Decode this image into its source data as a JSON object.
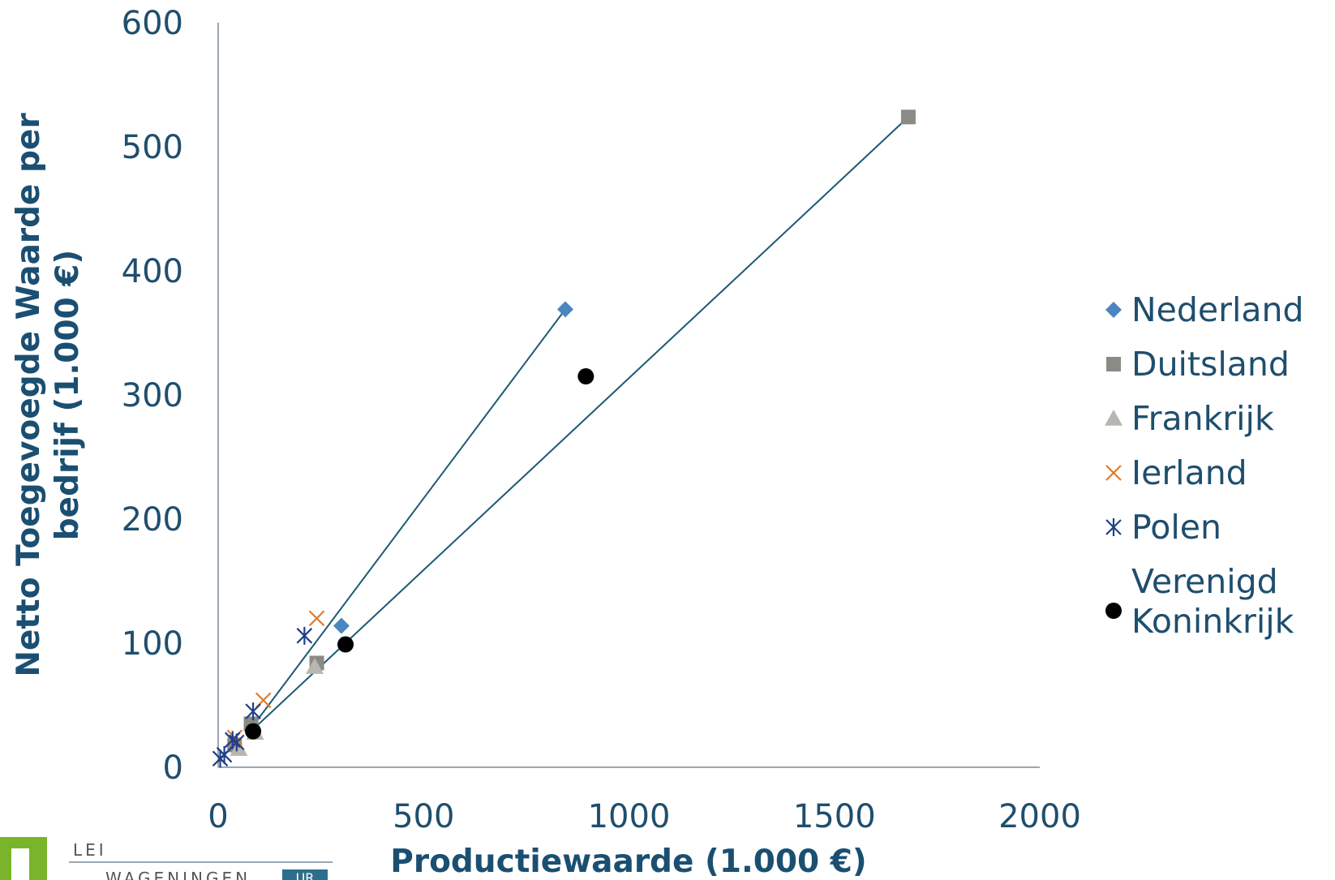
{
  "chart_data": {
    "type": "scatter",
    "xlabel": "Productiewaarde (1.000 €)",
    "ylabel_lines": [
      "Netto Toegevoegde Waarde per",
      "bedrijf  (1.000 €)"
    ],
    "xlim": [
      0,
      2000
    ],
    "ylim": [
      0,
      600
    ],
    "x_ticks": [
      "0",
      "500",
      "1000",
      "1500",
      "2000"
    ],
    "y_ticks": [
      "0",
      "100",
      "200",
      "300",
      "400",
      "500",
      "600"
    ],
    "grid": false,
    "legend_position": "right",
    "series": [
      {
        "name": "Nederland",
        "marker": "diamond",
        "color": "#4a86c0",
        "points": [
          [
            300,
            114
          ],
          [
            845,
            369
          ]
        ]
      },
      {
        "name": "Duitsland",
        "marker": "square",
        "color": "#8c8a85",
        "points": [
          [
            40,
            18
          ],
          [
            80,
            35
          ],
          [
            240,
            84
          ],
          [
            1680,
            524
          ]
        ]
      },
      {
        "name": "Frankrijk",
        "marker": "triangle",
        "color": "#b8b6b0",
        "points": [
          [
            50,
            15
          ],
          [
            90,
            28
          ],
          [
            235,
            81
          ]
        ]
      },
      {
        "name": "Ierland",
        "marker": "x",
        "color": "#e07b2a",
        "points": [
          [
            40,
            24
          ],
          [
            110,
            54
          ],
          [
            240,
            120
          ]
        ]
      },
      {
        "name": "Polen",
        "marker": "star",
        "color": "#1f3f8a",
        "points": [
          [
            5,
            7
          ],
          [
            15,
            10
          ],
          [
            35,
            22
          ],
          [
            45,
            20
          ],
          [
            85,
            45
          ],
          [
            210,
            106
          ]
        ]
      },
      {
        "name": "Verenigd Koninkrijk",
        "marker": "circle",
        "color": "#000000",
        "points": [
          [
            85,
            29
          ],
          [
            310,
            99
          ],
          [
            895,
            315
          ]
        ]
      }
    ],
    "trendlines": [
      {
        "color": "#1a5a74",
        "points": [
          [
            75,
            29
          ],
          [
            845,
            369
          ]
        ]
      },
      {
        "color": "#1a5a74",
        "points": [
          [
            80,
            29
          ],
          [
            1680,
            524
          ]
        ]
      }
    ]
  },
  "logo": {
    "line1": "LEI",
    "line2": "WAGENINGEN",
    "badge": "UR"
  }
}
